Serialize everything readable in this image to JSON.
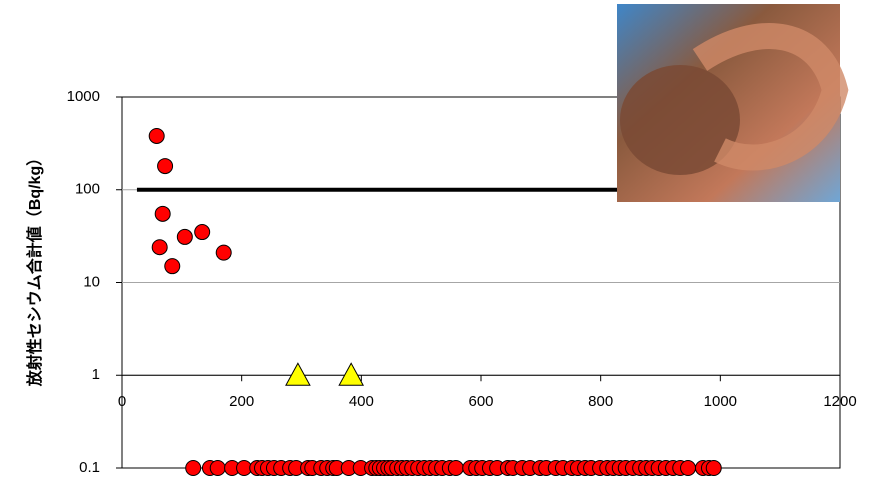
{
  "chart_data": {
    "type": "scatter",
    "y_title": "放射性セシウム合計値（Bq/kg）",
    "log_y": true,
    "ylim": [
      0.1,
      1000
    ],
    "yticks": [
      0.1,
      1,
      10,
      100,
      1000
    ],
    "xlim": [
      0,
      1200
    ],
    "xticks": [
      0,
      200,
      400,
      600,
      800,
      1000,
      1200
    ],
    "x_axis_at": 1,
    "grid": true,
    "reference_line": {
      "value": 100,
      "x": [
        25,
        1000
      ],
      "color": "#000000"
    },
    "series": [
      {
        "marker": "circle",
        "color": "#ff0000",
        "x": [
          58,
          72,
          68,
          63,
          105,
          134,
          84,
          170
        ],
        "values": [
          380,
          180,
          55,
          24,
          31,
          35,
          15,
          21
        ]
      },
      {
        "marker": "triangle",
        "color": "#ffff00",
        "x": [
          294,
          383
        ],
        "values": [
          1,
          1
        ]
      },
      {
        "marker": "circle",
        "color": "#ff0000",
        "x": [
          119,
          147,
          160,
          184,
          204,
          226,
          234,
          244,
          254,
          266,
          281,
          291,
          311,
          318,
          333,
          343,
          353,
          359,
          379,
          399,
          418,
          425,
          431,
          438,
          445,
          451,
          460,
          468,
          476,
          485,
          495,
          505,
          515,
          525,
          535,
          548,
          558,
          582,
          592,
          602,
          615,
          627,
          645,
          653,
          669,
          682,
          699,
          709,
          725,
          737,
          752,
          762,
          774,
          784,
          799,
          811,
          821,
          832,
          842,
          854,
          866,
          876,
          886,
          897,
          909,
          921,
          933,
          946,
          971,
          981,
          989
        ],
        "values": [
          0.1,
          0.1,
          0.1,
          0.1,
          0.1,
          0.1,
          0.1,
          0.1,
          0.1,
          0.1,
          0.1,
          0.1,
          0.1,
          0.1,
          0.1,
          0.1,
          0.1,
          0.1,
          0.1,
          0.1,
          0.1,
          0.1,
          0.1,
          0.1,
          0.1,
          0.1,
          0.1,
          0.1,
          0.1,
          0.1,
          0.1,
          0.1,
          0.1,
          0.1,
          0.1,
          0.1,
          0.1,
          0.1,
          0.1,
          0.1,
          0.1,
          0.1,
          0.1,
          0.1,
          0.1,
          0.1,
          0.1,
          0.1,
          0.1,
          0.1,
          0.1,
          0.1,
          0.1,
          0.1,
          0.1,
          0.1,
          0.1,
          0.1,
          0.1,
          0.1,
          0.1,
          0.1,
          0.1,
          0.1,
          0.1,
          0.1,
          0.1,
          0.1,
          0.1,
          0.1,
          0.1
        ]
      }
    ]
  }
}
